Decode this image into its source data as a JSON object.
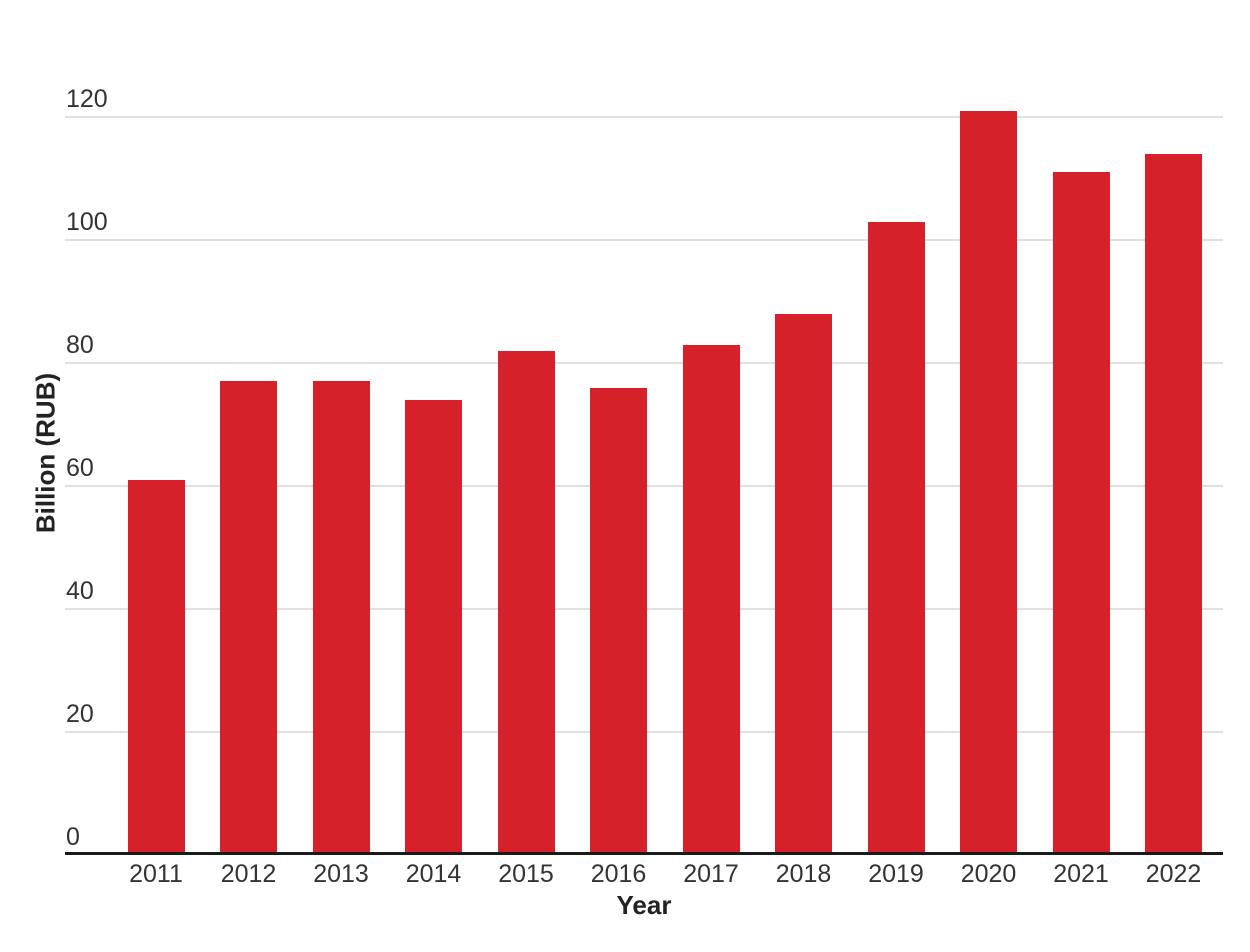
{
  "chart_data": {
    "type": "bar",
    "title": "",
    "categories": [
      "2011",
      "2012",
      "2013",
      "2014",
      "2015",
      "2016",
      "2017",
      "2018",
      "2019",
      "2020",
      "2021",
      "2022"
    ],
    "values": [
      61,
      77,
      77,
      74,
      82,
      76,
      83,
      88,
      103,
      121,
      111,
      114
    ],
    "xlabel": "Year",
    "ylabel": "Billion (RUB)",
    "ylim": [
      0,
      130
    ],
    "yticks": [
      0,
      20,
      40,
      60,
      80,
      100,
      120
    ],
    "grid": true,
    "legend": "none",
    "bar_color": "#d7212a",
    "gridline_color": "#e0e0e0",
    "axis_line_color": "#1a1a1a",
    "tick_label_color": "#333333",
    "axis_title_color": "#222222",
    "background_color": "#ffffff"
  }
}
